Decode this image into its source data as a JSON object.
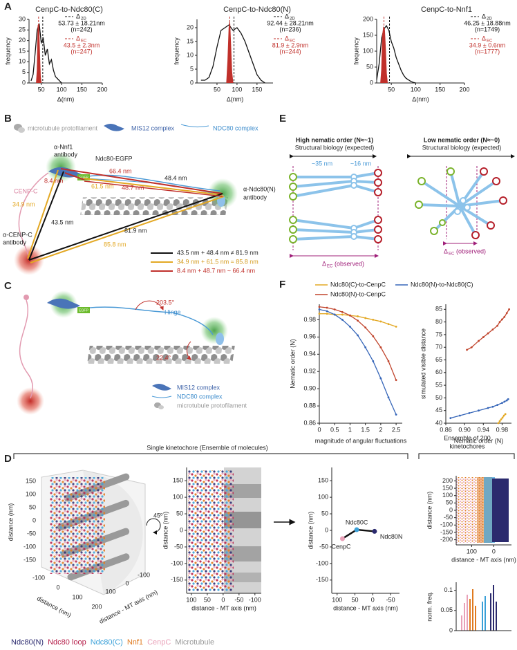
{
  "figure": {
    "panel_labels": [
      "A",
      "B",
      "C",
      "D",
      "E",
      "F"
    ]
  },
  "chart_data": [
    {
      "type": "line",
      "title": "CenpC-to-Ndc80(C)",
      "xlabel": "Δ(nm)",
      "ylabel": "frequency",
      "xlim": [
        20,
        200
      ],
      "xticks": [
        50,
        100,
        150,
        200
      ],
      "ylim": [
        0,
        30
      ],
      "yticks": [
        0,
        5,
        10,
        15,
        20,
        25,
        30
      ],
      "series": [
        {
          "name": "Δ",
          "name_sub": "2D",
          "color": "#111111",
          "mean": 53.73,
          "stat_label": "53.73 ± 18.21nm",
          "n_label": "(n=242)",
          "x": [
            25,
            30,
            35,
            40,
            45,
            50,
            55,
            60,
            65,
            70,
            75,
            80,
            85,
            90,
            95,
            100
          ],
          "values": [
            1,
            4,
            14,
            25,
            28,
            19,
            21,
            13,
            16,
            9,
            11,
            6,
            3,
            2,
            1,
            0
          ]
        },
        {
          "name": "Δ",
          "name_sub": "EC",
          "color": "#c0302b",
          "fill": true,
          "mean": 43.5,
          "stat_label": "43.5 ± 2.3nm",
          "n_label": "(n=247)",
          "x": [
            38,
            40,
            42,
            44,
            46,
            48,
            50
          ],
          "values": [
            0,
            6,
            27,
            28,
            14,
            3,
            0
          ]
        }
      ]
    },
    {
      "type": "line",
      "title": "CenpC-to-Ndc80(N)",
      "xlabel": "Δ(nm)",
      "ylabel": "frequency",
      "xlim": [
        0,
        190
      ],
      "xticks": [
        50,
        100,
        150
      ],
      "ylim": [
        0,
        23
      ],
      "yticks": [
        0,
        5,
        10,
        15,
        20
      ],
      "series": [
        {
          "name": "Δ",
          "name_sub": "2D",
          "color": "#111111",
          "mean": 92.44,
          "stat_label": "92.44 ± 28.21nm",
          "n_label": "(n=236)",
          "x": [
            10,
            20,
            30,
            40,
            50,
            60,
            70,
            80,
            90,
            100,
            110,
            120,
            130,
            140,
            150,
            160,
            170
          ],
          "values": [
            1,
            1,
            2,
            6,
            13,
            19,
            20,
            21,
            19,
            20,
            18,
            15,
            11,
            7,
            3,
            1,
            0
          ]
        },
        {
          "name": "Δ",
          "name_sub": "EC",
          "color": "#c0302b",
          "fill": true,
          "mean": 81.9,
          "stat_label": "81.9 ± 2.9nm",
          "n_label": "(n=244)",
          "x": [
            74,
            77,
            80,
            82,
            84,
            87,
            90
          ],
          "values": [
            0,
            8,
            20,
            22,
            15,
            4,
            0
          ]
        }
      ]
    },
    {
      "type": "line",
      "title": "CenpC-to-Nnf1",
      "xlabel": "Δ(nm)",
      "ylabel": "frequency",
      "xlim": [
        20,
        200
      ],
      "xticks": [
        50,
        100,
        150,
        200
      ],
      "ylim": [
        0,
        200
      ],
      "yticks": [
        0,
        50,
        100,
        150,
        200
      ],
      "series": [
        {
          "name": "Δ",
          "name_sub": "2D",
          "color": "#111111",
          "mean": 46.25,
          "stat_label": "46.25 ± 18.88nm",
          "n_label": "(n=1749)",
          "x": [
            20,
            25,
            30,
            35,
            40,
            45,
            50,
            55,
            60,
            65,
            70,
            75,
            80,
            85,
            90,
            95,
            100
          ],
          "values": [
            10,
            60,
            140,
            170,
            180,
            165,
            130,
            110,
            80,
            60,
            40,
            25,
            15,
            10,
            5,
            2,
            0
          ]
        },
        {
          "name": "Δ",
          "name_sub": "EC",
          "color": "#c0302b",
          "fill": true,
          "mean": 34.9,
          "stat_label": "34.9 ± 0.6nm",
          "n_label": "(n=1777)",
          "x": [
            28,
            30,
            32,
            34,
            36,
            38,
            40,
            42
          ],
          "values": [
            0,
            40,
            150,
            175,
            170,
            110,
            30,
            0
          ]
        }
      ]
    },
    {
      "type": "line",
      "xlabel": "magnitude of angular fluctuations",
      "ylabel": "Nematic order (N)",
      "xlim": [
        0,
        2.7
      ],
      "xticks": [
        0,
        0.5,
        1,
        1.5,
        2,
        2.5
      ],
      "ylim": [
        0.86,
        0.998
      ],
      "yticks": [
        0.86,
        0.88,
        {
          "value": 0.9,
          "label": "0.90"
        },
        0.92,
        0.94,
        0.96,
        0.98
      ],
      "series": [
        {
          "name": "Ndc80(C)-to-CenpC",
          "color": "#e3a823",
          "x": [
            0,
            0.25,
            0.5,
            0.75,
            1,
            1.25,
            1.5,
            1.75,
            2,
            2.25,
            2.5
          ],
          "values": [
            0.987,
            0.987,
            0.986,
            0.986,
            0.985,
            0.984,
            0.982,
            0.98,
            0.978,
            0.975,
            0.972
          ]
        },
        {
          "name": "Ndc80(N)-to-CenpC",
          "color": "#c0432b",
          "x": [
            0,
            0.25,
            0.5,
            0.75,
            1,
            1.25,
            1.5,
            1.75,
            2,
            2.25,
            2.5
          ],
          "values": [
            0.995,
            0.994,
            0.992,
            0.989,
            0.985,
            0.979,
            0.971,
            0.961,
            0.948,
            0.932,
            0.91
          ]
        },
        {
          "name": "Ndc80(N)-to-Ndc80(C)",
          "color": "#3565b8",
          "x": [
            0,
            0.25,
            0.5,
            0.75,
            1,
            1.25,
            1.5,
            1.75,
            2,
            2.25,
            2.5
          ],
          "values": [
            0.992,
            0.99,
            0.986,
            0.98,
            0.972,
            0.962,
            0.948,
            0.932,
            0.912,
            0.89,
            0.87
          ]
        }
      ]
    },
    {
      "type": "line",
      "xlabel": "Nematic order (N)",
      "ylabel": "simulated visible distance",
      "xlim": [
        0.86,
        1.0
      ],
      "xticks": [
        0.86,
        {
          "value": 0.9,
          "label": "0.90"
        },
        0.94,
        0.98
      ],
      "ylim": [
        40,
        87
      ],
      "yticks": [
        40,
        45,
        50,
        55,
        60,
        65,
        70,
        75,
        80,
        85
      ],
      "series": [
        {
          "color": "#e3a823",
          "x": [
            0.972,
            0.975,
            0.978,
            0.981,
            0.984,
            0.987
          ],
          "values": [
            40,
            40.8,
            41.5,
            42.2,
            43,
            43.6
          ]
        },
        {
          "color": "#c0432b",
          "x": [
            0.905,
            0.915,
            0.93,
            0.94,
            0.95,
            0.96,
            0.97,
            0.975,
            0.98,
            0.985,
            0.99,
            0.995
          ],
          "values": [
            69,
            70,
            72.5,
            74,
            75.5,
            77,
            78.5,
            80,
            81,
            82,
            83.5,
            85
          ]
        },
        {
          "color": "#3565b8",
          "x": [
            0.87,
            0.89,
            0.91,
            0.93,
            0.95,
            0.96,
            0.97,
            0.98,
            0.985,
            0.99,
            0.993
          ],
          "values": [
            42,
            43,
            44,
            45,
            46,
            46.5,
            47.2,
            48,
            48.5,
            49,
            49.5
          ]
        }
      ]
    },
    {
      "type": "scatter",
      "xlabel": "distance - MT axis (nm)",
      "ylabel": "distance (nm)",
      "xlim": [
        115,
        -120
      ],
      "xticks": [
        100,
        50,
        0,
        -50,
        -100
      ],
      "ylim": [
        -190,
        190
      ],
      "yticks": [
        150,
        100,
        50,
        0,
        -50,
        -100,
        -150
      ]
    },
    {
      "type": "scatter",
      "xlabel": "distance - MT axis (nm)",
      "ylabel": "distance (nm)",
      "xlim": [
        115,
        -75
      ],
      "xticks": [
        100,
        50,
        0,
        -50
      ],
      "ylim": [
        -190,
        190
      ],
      "yticks": [
        150,
        100,
        50,
        0,
        -50,
        -100,
        -150
      ],
      "series": [
        {
          "color": "#111111",
          "connect": true,
          "point_labels": [
            "CenpC",
            "Ndc80C",
            "Ndc80N"
          ],
          "point_colors": [
            "#e9a0b8",
            "#3aa0d8",
            "#2b2a6e"
          ],
          "x": [
            85,
            45,
            -5
          ],
          "values": [
            -25,
            2,
            -3
          ]
        }
      ]
    },
    {
      "type": "scatter",
      "xlabel": "distance - MT axis (nm)",
      "ylabel": "distance (nm)",
      "xlim": [
        170,
        -80
      ],
      "xticks": [
        100,
        0
      ],
      "ylim": [
        -235,
        235
      ],
      "yticks": [
        200,
        150,
        100,
        50,
        0,
        -50,
        -100,
        -150,
        -200
      ]
    },
    {
      "type": "bar",
      "ylabel": "norm. freq.",
      "xlim": [
        170,
        -80
      ],
      "ylim": [
        0,
        0.12
      ],
      "yticks": [
        0,
        0.05,
        0.1
      ]
    }
  ],
  "diagram_b": {
    "legend": [
      "microtubule protofilament",
      "MIS12 complex",
      "NDC80 complex"
    ],
    "nnf1_antibody": [
      "α-Nnf1",
      "antibody"
    ],
    "egfp_label": "Ndc80-EGFP",
    "egfp_box": "EGFP",
    "ndc80n_antibody": [
      "α-Ndc80(N)",
      "antibody"
    ],
    "cenpc_antibody": [
      "α-CENP-C",
      "antibody"
    ],
    "cenpc": "CENP-C",
    "distances": {
      "d66_4": "66.4 nm",
      "d48_4": "48.4 nm",
      "d8_4": "8.4 nm",
      "d61_5": "61.5 nm",
      "d48_7": "48.7 nm",
      "d34_9": "34.9 nm",
      "d43_5": "43.5 nm",
      "d81_9": "81.9 nm",
      "d85_8": "85.8 nm"
    },
    "equations": [
      "43.5 nm + 48.4 nm ≠ 81.9 nm",
      "34.9 nm + 61.5 nm ≈ 85.8 nm",
      "8.4 nm + 48.7 nm ~ 66.4 nm"
    ]
  },
  "diagram_c": {
    "angle_hinge": "203.5°",
    "hinge": "Hinge",
    "angle_mt": "22.4°",
    "egfp_box": "EGFP",
    "legend": [
      "MIS12 complex",
      "NDC80 complex",
      "microtubule protofilament"
    ]
  },
  "diagram_e": {
    "high_title": "High nematic order (N≈~1)",
    "high_sub": "Structural biology (expected)",
    "len_35": "~35 nm",
    "len_16": "~16 nm",
    "high_delta": "Δ",
    "high_delta_sub": "EC",
    "high_observed": "(observed)",
    "low_title": "Low nematic order (N≈~0)",
    "low_sub": "Structural biology (expected)",
    "low_delta": "Δ",
    "low_delta_sub": "EC",
    "low_observed": "(observed)"
  },
  "panel_d": {
    "title": "Single kinetochore (Ensemble of molecules)",
    "ensemble_title": [
      "Ensemble of 200",
      "kinetochores"
    ],
    "rotation": "45º",
    "plot3d": {
      "zlabel": "distance (nm)",
      "zticks": [
        150,
        100,
        50,
        0,
        -50,
        -100,
        -150
      ],
      "xlabel": "distance (nm)",
      "xticks": [
        -100,
        0,
        100,
        200
      ],
      "ylabel": "distance - MT axis (nm)",
      "yticks": [
        -100,
        0,
        100
      ]
    },
    "legend": [
      {
        "name": "Ndc80(N)",
        "color": "#2b2a6e"
      },
      {
        "name": "Ndc80 loop",
        "color": "#b51f4a"
      },
      {
        "name": "Ndc80(C)",
        "color": "#3aa0d8"
      },
      {
        "name": "Nnf1",
        "color": "#e07a1f"
      },
      {
        "name": "CenpC",
        "color": "#e9a0b8"
      },
      {
        "name": "Microtubule",
        "color": "#999999"
      }
    ]
  }
}
